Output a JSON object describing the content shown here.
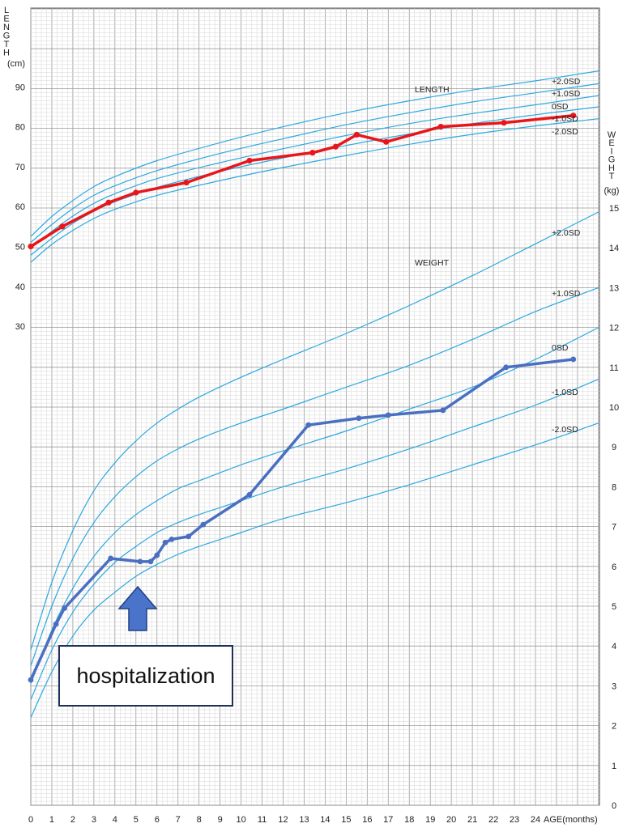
{
  "chart_data": {
    "type": "line",
    "x_axis": {
      "label": "AGE(months)",
      "range": [
        0,
        27
      ],
      "ticks": [
        0,
        1,
        2,
        3,
        4,
        5,
        6,
        7,
        8,
        9,
        10,
        11,
        12,
        13,
        14,
        15,
        16,
        17,
        18,
        19,
        20,
        21,
        22,
        23,
        24
      ]
    },
    "left_axis": {
      "label_letters": [
        "L",
        "E",
        "N",
        "G",
        "T",
        "H"
      ],
      "unit": "(cm)",
      "ticks": [
        30,
        40,
        50,
        60,
        70,
        80,
        90
      ]
    },
    "right_axis": {
      "label_letters": [
        "W",
        "E",
        "I",
        "G",
        "H",
        "T"
      ],
      "unit": "(kg)",
      "ticks": [
        0,
        1,
        2,
        3,
        4,
        5,
        6,
        7,
        8,
        9,
        10,
        11,
        12,
        13,
        14,
        15
      ]
    },
    "sections": {
      "length": "LENGTH",
      "weight": "WEIGHT"
    },
    "sd_labels": {
      "length": [
        "+2.0SD",
        "+1.0SD",
        "0SD",
        "-1.0SD",
        "-2.0SD"
      ],
      "weight": [
        "+2.0SD",
        "+1.0SD",
        "0SD",
        "-1.0SD",
        "-2.0SD"
      ]
    },
    "reference_curves": {
      "length_cm": [
        {
          "name": "+2.0SD",
          "points": [
            [
              0,
              52.5
            ],
            [
              1,
              57.5
            ],
            [
              2,
              61.5
            ],
            [
              3,
              65
            ],
            [
              4,
              67.5
            ],
            [
              6,
              71.5
            ],
            [
              9,
              76
            ],
            [
              12,
              80
            ],
            [
              15,
              83.5
            ],
            [
              18,
              86.5
            ],
            [
              21,
              89.2
            ],
            [
              24,
              91.5
            ],
            [
              27,
              94
            ]
          ]
        },
        {
          "name": "+1.0SD",
          "points": [
            [
              0,
              51
            ],
            [
              1,
              55.5
            ],
            [
              2,
              59.5
            ],
            [
              3,
              62.8
            ],
            [
              4,
              65.2
            ],
            [
              6,
              69
            ],
            [
              9,
              73.3
            ],
            [
              12,
              77
            ],
            [
              15,
              80.5
            ],
            [
              18,
              83.5
            ],
            [
              21,
              86.2
            ],
            [
              24,
              88.5
            ],
            [
              27,
              90.8
            ]
          ]
        },
        {
          "name": "0SD",
          "points": [
            [
              0,
              49.5
            ],
            [
              1,
              53.8
            ],
            [
              2,
              57.6
            ],
            [
              3,
              60.8
            ],
            [
              4,
              63.2
            ],
            [
              6,
              67
            ],
            [
              9,
              71
            ],
            [
              12,
              74.5
            ],
            [
              15,
              77.8
            ],
            [
              18,
              80.8
            ],
            [
              21,
              83.3
            ],
            [
              24,
              85.5
            ],
            [
              27,
              87.8
            ]
          ]
        },
        {
          "name": "-1.0SD",
          "points": [
            [
              0,
              47.8
            ],
            [
              1,
              52
            ],
            [
              2,
              55.8
            ],
            [
              3,
              58.8
            ],
            [
              4,
              61.2
            ],
            [
              6,
              64.8
            ],
            [
              9,
              68.8
            ],
            [
              12,
              72.2
            ],
            [
              15,
              75.3
            ],
            [
              18,
              78.2
            ],
            [
              21,
              80.8
            ],
            [
              24,
              83
            ],
            [
              27,
              85
            ]
          ]
        },
        {
          "name": "-2.0SD",
          "points": [
            [
              0,
              46
            ],
            [
              1,
              50.5
            ],
            [
              2,
              54
            ],
            [
              3,
              57
            ],
            [
              4,
              59.3
            ],
            [
              6,
              62.8
            ],
            [
              9,
              66.5
            ],
            [
              12,
              69.8
            ],
            [
              15,
              72.8
            ],
            [
              18,
              75.6
            ],
            [
              21,
              78.1
            ],
            [
              24,
              80.2
            ],
            [
              27,
              82
            ]
          ]
        }
      ],
      "weight_kg": [
        {
          "name": "+2.0SD",
          "points": [
            [
              0,
              3.9
            ],
            [
              1,
              5.6
            ],
            [
              2,
              6.9
            ],
            [
              3,
              7.9
            ],
            [
              4,
              8.6
            ],
            [
              5,
              9.15
            ],
            [
              6,
              9.6
            ],
            [
              7,
              9.95
            ],
            [
              8,
              10.25
            ],
            [
              10,
              10.75
            ],
            [
              12,
              11.2
            ],
            [
              15,
              11.85
            ],
            [
              18,
              12.55
            ],
            [
              21,
              13.3
            ],
            [
              24,
              14.1
            ],
            [
              27,
              14.9
            ]
          ]
        },
        {
          "name": "+1.0SD",
          "points": [
            [
              0,
              3.5
            ],
            [
              1,
              5.0
            ],
            [
              2,
              6.2
            ],
            [
              3,
              7.1
            ],
            [
              4,
              7.75
            ],
            [
              5,
              8.25
            ],
            [
              6,
              8.65
            ],
            [
              7,
              8.95
            ],
            [
              8,
              9.2
            ],
            [
              10,
              9.6
            ],
            [
              12,
              9.95
            ],
            [
              15,
              10.5
            ],
            [
              18,
              11.05
            ],
            [
              21,
              11.7
            ],
            [
              24,
              12.4
            ],
            [
              27,
              13.0
            ]
          ]
        },
        {
          "name": "0SD",
          "points": [
            [
              0,
              3.05
            ],
            [
              1,
              4.4
            ],
            [
              2,
              5.45
            ],
            [
              3,
              6.25
            ],
            [
              4,
              6.85
            ],
            [
              5,
              7.3
            ],
            [
              6,
              7.65
            ],
            [
              7,
              7.95
            ],
            [
              8,
              8.15
            ],
            [
              10,
              8.55
            ],
            [
              12,
              8.9
            ],
            [
              15,
              9.4
            ],
            [
              18,
              9.95
            ],
            [
              21,
              10.5
            ],
            [
              24,
              11.2
            ],
            [
              27,
              12.0
            ]
          ]
        },
        {
          "name": "-1.0SD",
          "points": [
            [
              0,
              2.65
            ],
            [
              1,
              3.9
            ],
            [
              2,
              4.85
            ],
            [
              3,
              5.55
            ],
            [
              4,
              6.1
            ],
            [
              5,
              6.5
            ],
            [
              6,
              6.85
            ],
            [
              7,
              7.1
            ],
            [
              8,
              7.3
            ],
            [
              10,
              7.65
            ],
            [
              12,
              8.0
            ],
            [
              15,
              8.45
            ],
            [
              18,
              8.95
            ],
            [
              21,
              9.5
            ],
            [
              24,
              10.05
            ],
            [
              27,
              10.7
            ]
          ]
        },
        {
          "name": "-2.0SD",
          "points": [
            [
              0,
              2.2
            ],
            [
              1,
              3.35
            ],
            [
              2,
              4.25
            ],
            [
              3,
              4.9
            ],
            [
              4,
              5.35
            ],
            [
              5,
              5.75
            ],
            [
              6,
              6.05
            ],
            [
              7,
              6.3
            ],
            [
              8,
              6.5
            ],
            [
              10,
              6.85
            ],
            [
              12,
              7.2
            ],
            [
              15,
              7.6
            ],
            [
              18,
              8.05
            ],
            [
              21,
              8.55
            ],
            [
              24,
              9.05
            ],
            [
              27,
              9.6
            ]
          ]
        }
      ]
    },
    "patient_length_cm": [
      [
        0,
        50
      ],
      [
        1.5,
        55
      ],
      [
        3.7,
        61
      ],
      [
        5.0,
        63.5
      ],
      [
        7.4,
        66
      ],
      [
        10.4,
        71.5
      ],
      [
        13.4,
        73.5
      ],
      [
        14.5,
        75
      ],
      [
        15.5,
        78
      ],
      [
        16.9,
        76.2
      ],
      [
        19.5,
        80
      ],
      [
        22.5,
        81
      ],
      [
        25.8,
        82.8
      ]
    ],
    "patient_weight_kg": [
      [
        0,
        3.15
      ],
      [
        1.2,
        4.55
      ],
      [
        1.6,
        4.95
      ],
      [
        3.8,
        6.2
      ],
      [
        5.2,
        6.12
      ],
      [
        5.7,
        6.12
      ],
      [
        6.0,
        6.28
      ],
      [
        6.4,
        6.6
      ],
      [
        6.7,
        6.68
      ],
      [
        7.5,
        6.75
      ],
      [
        8.2,
        7.05
      ],
      [
        10.4,
        7.8
      ],
      [
        13.2,
        9.55
      ],
      [
        15.6,
        9.72
      ],
      [
        17.0,
        9.8
      ],
      [
        19.6,
        9.92
      ],
      [
        22.6,
        11.0
      ],
      [
        25.8,
        11.2
      ]
    ],
    "annotation": {
      "text": "hospitalization",
      "arrow_at_months": 5.2
    },
    "colors": {
      "length_series": "#e8161b",
      "weight_series": "#4a6fc1",
      "reference": "#2ba9df",
      "grid": "#b8b8b8",
      "arrow": "#4a74c9"
    }
  }
}
